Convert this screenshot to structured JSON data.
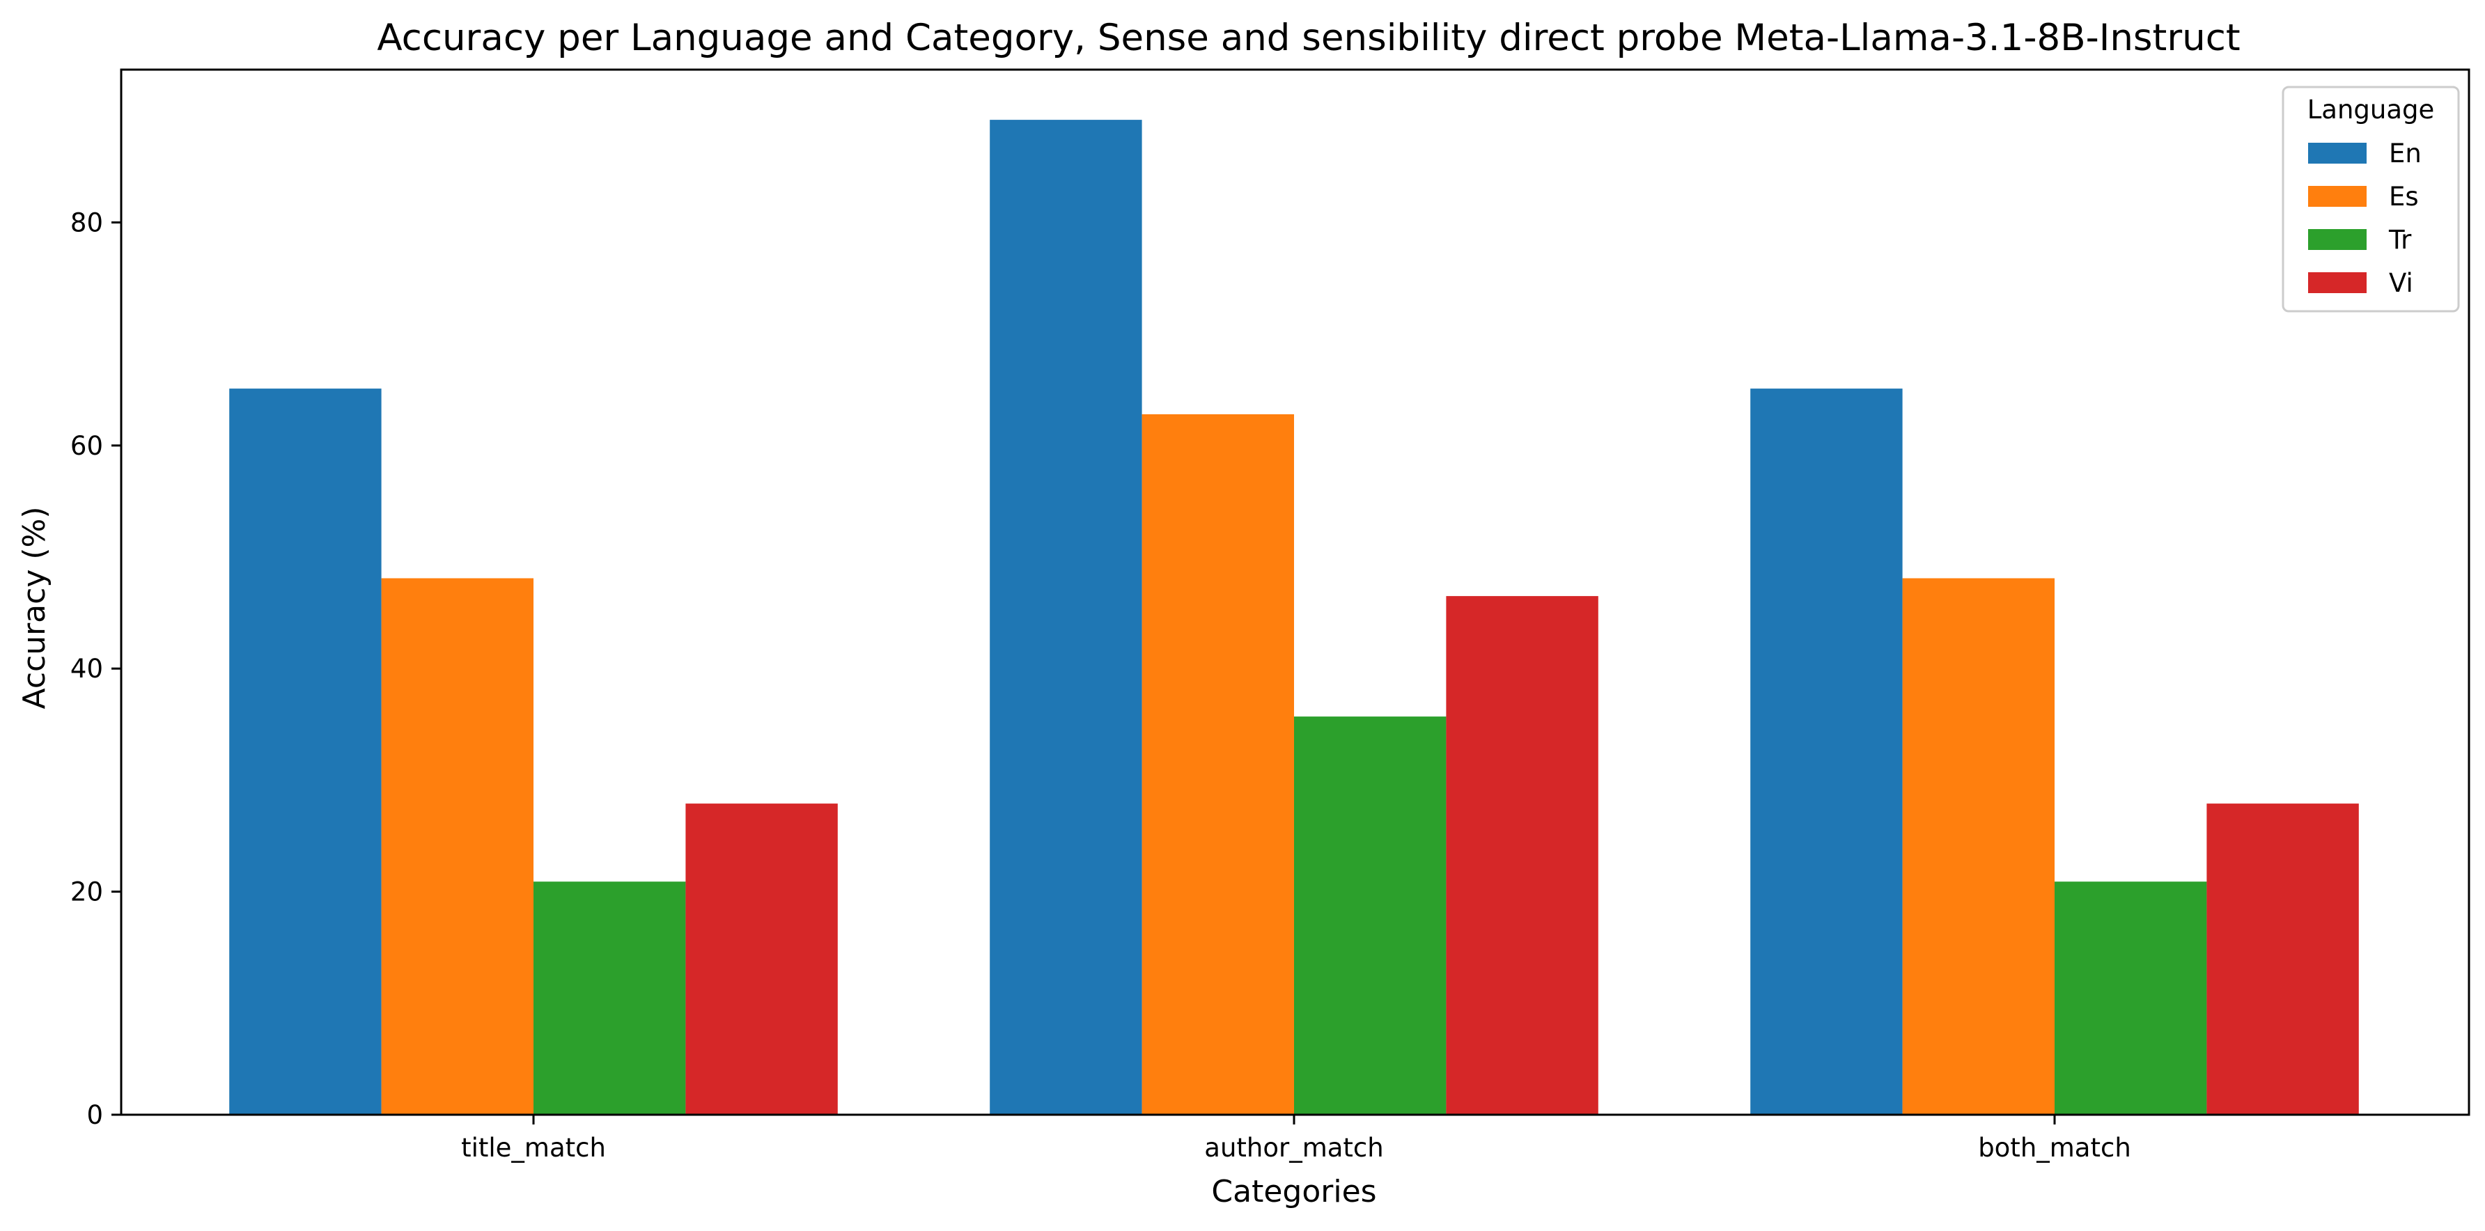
{
  "chart_data": {
    "type": "bar",
    "title": "Accuracy per Language and Category, Sense and sensibility direct probe Meta-Llama-3.1-8B-Instruct",
    "xlabel": "Categories",
    "ylabel": "Accuracy (%)",
    "categories": [
      "title_match",
      "author_match",
      "both_match"
    ],
    "series": [
      {
        "name": "En",
        "color": "#1f77b4",
        "values": [
          65.1,
          89.2,
          65.1
        ]
      },
      {
        "name": "Es",
        "color": "#ff7f0e",
        "values": [
          48.1,
          62.8,
          48.1
        ]
      },
      {
        "name": "Tr",
        "color": "#2ca02c",
        "values": [
          20.9,
          35.7,
          20.9
        ]
      },
      {
        "name": "Vi",
        "color": "#d62728",
        "values": [
          27.9,
          46.5,
          27.9
        ]
      }
    ],
    "ylim": [
      0,
      93.7
    ],
    "yticks": [
      "0",
      "20",
      "40",
      "60",
      "80"
    ],
    "legend": {
      "title": "Language",
      "position": "top-right"
    },
    "grid": false
  }
}
